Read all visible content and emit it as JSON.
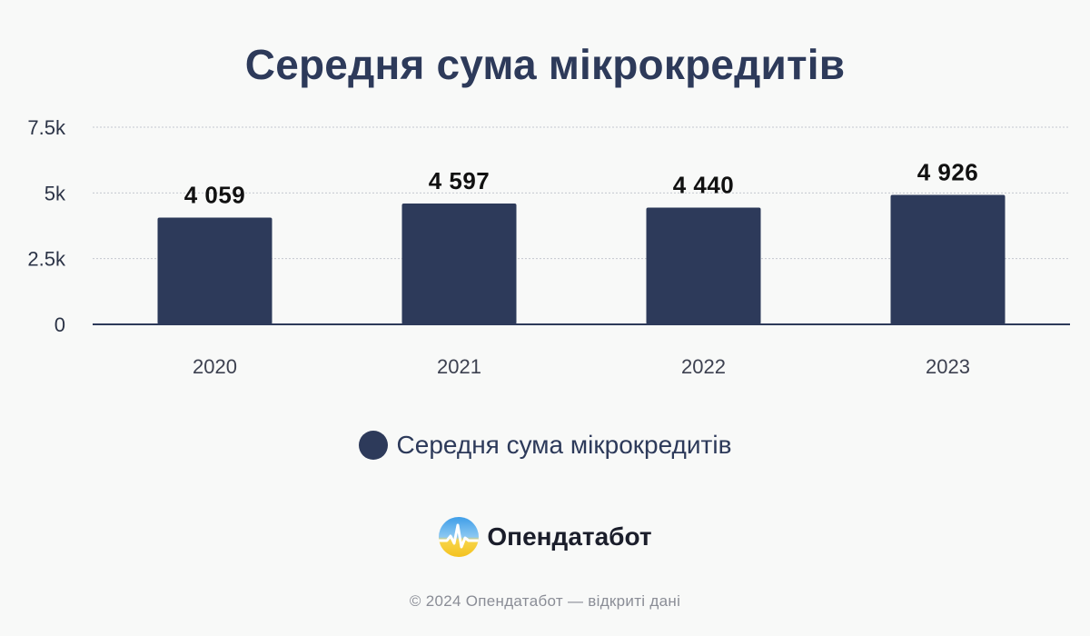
{
  "colors": {
    "bar": "#2d3a5a",
    "axis": "#2d3a5a",
    "grid": "#c4c7cf",
    "background": "#f8f9f8"
  },
  "chart_data": {
    "type": "bar",
    "title": "Середня сума мікрокредитів",
    "xlabel": "",
    "ylabel": "",
    "categories": [
      "2020",
      "2021",
      "2022",
      "2023"
    ],
    "series": [
      {
        "name": "Середня сума мікрокредитів",
        "values": [
          4059,
          4597,
          4440,
          4926
        ],
        "labels": [
          "4 059",
          "4 597",
          "4 440",
          "4 926"
        ]
      }
    ],
    "ylim": [
      0,
      7500
    ],
    "yticks": [
      0,
      2500,
      5000,
      7500
    ],
    "ytick_labels": [
      "0",
      "2.5k",
      "5k",
      "7.5k"
    ],
    "grid": true,
    "legend": "bottom-center"
  },
  "brand": {
    "name": "Опендатабот",
    "logo_icon": "opendatabot-logo-icon"
  },
  "footer": {
    "copyright": "© 2024 Опендатабот — відкриті дані"
  }
}
